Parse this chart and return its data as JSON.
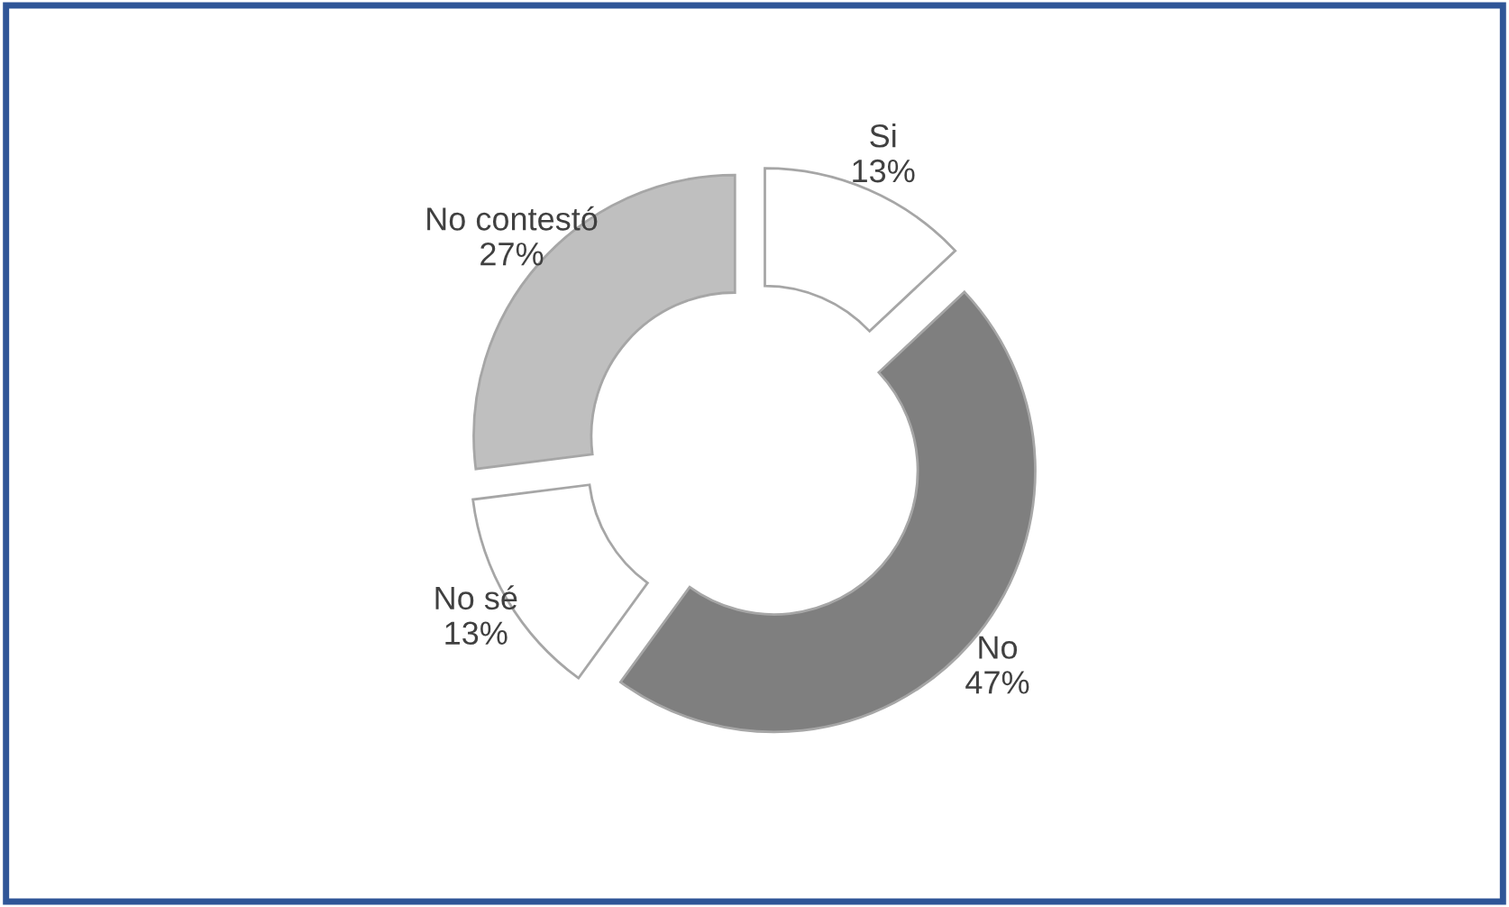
{
  "chart_data": {
    "type": "donut",
    "categories": [
      "Si",
      "No",
      "No sé",
      "No contestó"
    ],
    "values": [
      13,
      47,
      13,
      27
    ],
    "value_labels": [
      "13%",
      "47%",
      "13%",
      "27%"
    ],
    "colors": [
      "#ffffff",
      "#7f7f7f",
      "#ffffff",
      "#bfbfbf"
    ],
    "legend": false
  }
}
